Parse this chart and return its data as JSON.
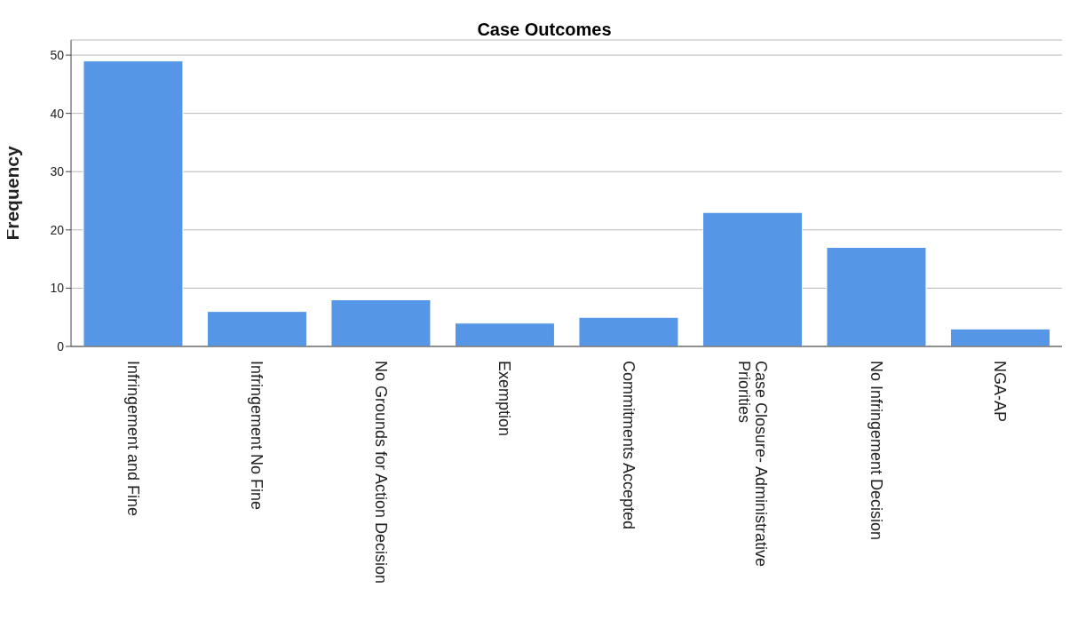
{
  "chart_data": {
    "type": "bar",
    "title": "Case Outcomes",
    "ylabel": "Frequency",
    "categories": [
      "Infringement and Fine",
      "Infringement No Fine",
      "No Grounds for Action Decision",
      "Exemption",
      "Commitments Accepted",
      "Case Closure- Administrative Priorities",
      "No Infringement Decision",
      "NGA-AP"
    ],
    "values": [
      49,
      6,
      8,
      4,
      5,
      23,
      17,
      3
    ],
    "color": "#5596e6",
    "ylim": [
      0,
      52.6
    ],
    "yticks": [
      0,
      10,
      20,
      30,
      40,
      50
    ],
    "grid": "y"
  }
}
